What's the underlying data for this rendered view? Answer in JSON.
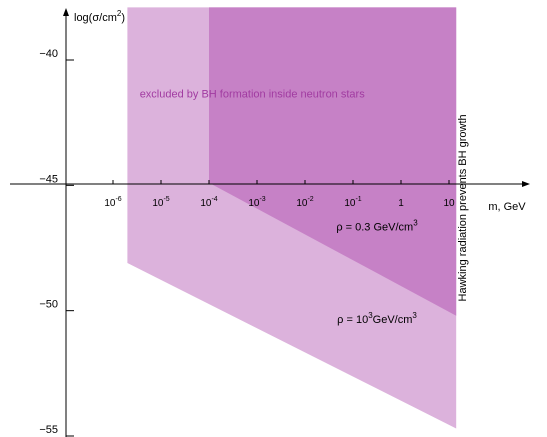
{
  "chart_data": {
    "type": "area",
    "title": "",
    "xlabel": "m, GeV",
    "ylabel": "log(σ/cm²)",
    "x_scale": "log",
    "xlim_log10": [
      -7,
      1.6
    ],
    "ylim": [
      -55.5,
      -37.6
    ],
    "grid": false,
    "x_ticks": [
      {
        "exp": -6,
        "label_base": "10",
        "label_sup": "-6"
      },
      {
        "exp": -5,
        "label_base": "10",
        "label_sup": "-5"
      },
      {
        "exp": -4,
        "label_base": "10",
        "label_sup": "-4"
      },
      {
        "exp": -3,
        "label_base": "10",
        "label_sup": "-3"
      },
      {
        "exp": -2,
        "label_base": "10",
        "label_sup": "-2"
      },
      {
        "exp": -1,
        "label_base": "10",
        "label_sup": "-1"
      },
      {
        "exp": 0,
        "label_base": "1",
        "label_sup": ""
      },
      {
        "exp": 1,
        "label_base": "10",
        "label_sup": ""
      }
    ],
    "y_ticks": [
      {
        "value": -40,
        "label": "−40"
      },
      {
        "value": -45,
        "label": "−45"
      },
      {
        "value": -50,
        "label": "−50"
      },
      {
        "value": -55,
        "label": "−55"
      }
    ],
    "regions": [
      {
        "color": "#dcb2dc",
        "points": [
          [
            -5.7,
            -37.9
          ],
          [
            1.15,
            -37.9
          ],
          [
            1.15,
            -54.7
          ],
          [
            -5.7,
            -48.1
          ]
        ]
      },
      {
        "color": "#c681c6",
        "points": [
          [
            -4.0,
            -37.9
          ],
          [
            1.15,
            -37.9
          ],
          [
            1.15,
            -50.2
          ],
          [
            -4.0,
            -44.9
          ]
        ]
      }
    ],
    "annotations": [
      {
        "text": "excluded by BH formation inside neutron stars",
        "x_log10": -3.1,
        "y": -41.5,
        "color": "#a13ba1"
      },
      {
        "text_prefix": "ρ = 0.3 GeV/cm",
        "text_sup": "3",
        "x_log10": -0.5,
        "y": -46.8,
        "color": "#000000"
      },
      {
        "text_prefix": "ρ = 10",
        "text_sup": "3",
        "text_suffix": "GeV/cm",
        "text_sup2": "3",
        "x_log10": -0.5,
        "y": -50.5,
        "color": "#000000"
      },
      {
        "text": "Hawking radiation prevents BH growth",
        "x_log10": 1.35,
        "y": -45.9,
        "rotate": -90,
        "color": "#000000"
      }
    ]
  }
}
